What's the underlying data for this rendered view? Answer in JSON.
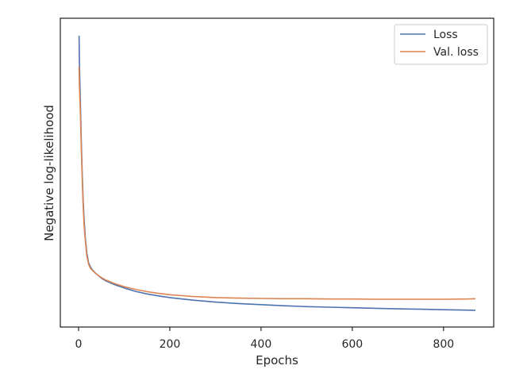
{
  "chart_data": {
    "type": "line",
    "xlabel": "Epochs",
    "ylabel": "Negative log-likelihood",
    "xlim": [
      -40,
      910
    ],
    "ylim": [
      0,
      1
    ],
    "x_ticks": [
      0,
      200,
      400,
      600,
      800
    ],
    "y_ticks_visible": false,
    "grid": false,
    "legend_position": "top-right",
    "series": [
      {
        "name": "Loss",
        "color": "#4c72b0",
        "x": [
          1,
          2,
          4,
          6,
          8,
          10,
          12,
          15,
          18,
          22,
          26,
          30,
          40,
          50,
          60,
          80,
          100,
          125,
          150,
          175,
          200,
          250,
          300,
          350,
          400,
          450,
          500,
          550,
          600,
          650,
          700,
          750,
          800,
          850,
          870
        ],
        "y": [
          0.98,
          0.88,
          0.74,
          0.61,
          0.49,
          0.4,
          0.33,
          0.26,
          0.21,
          0.175,
          0.16,
          0.15,
          0.133,
          0.12,
          0.11,
          0.096,
          0.085,
          0.073,
          0.064,
          0.057,
          0.051,
          0.042,
          0.035,
          0.03,
          0.026,
          0.022,
          0.019,
          0.017,
          0.015,
          0.013,
          0.011,
          0.0095,
          0.008,
          0.0065,
          0.006
        ]
      },
      {
        "name": "Val. loss",
        "color": "#dd8452",
        "x": [
          1,
          2,
          4,
          6,
          8,
          10,
          12,
          15,
          18,
          22,
          26,
          30,
          40,
          50,
          60,
          80,
          100,
          125,
          150,
          175,
          200,
          250,
          300,
          350,
          400,
          450,
          500,
          550,
          600,
          650,
          700,
          750,
          800,
          850,
          870
        ],
        "y": [
          0.87,
          0.8,
          0.7,
          0.58,
          0.47,
          0.38,
          0.31,
          0.25,
          0.2,
          0.17,
          0.155,
          0.148,
          0.133,
          0.122,
          0.113,
          0.1,
          0.09,
          0.08,
          0.072,
          0.066,
          0.061,
          0.055,
          0.051,
          0.049,
          0.048,
          0.047,
          0.047,
          0.046,
          0.046,
          0.045,
          0.045,
          0.045,
          0.045,
          0.046,
          0.047
        ]
      }
    ]
  }
}
